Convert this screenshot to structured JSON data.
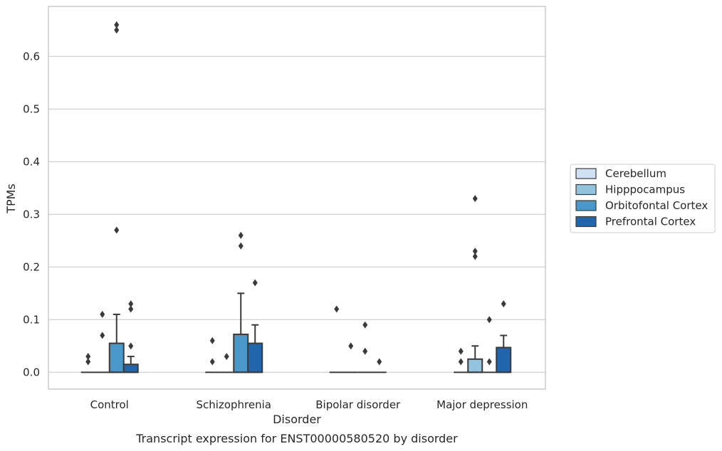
{
  "chart_data": {
    "type": "box",
    "caption": "Transcript expression for ENST00000580520 by disorder",
    "xlabel": "Disorder",
    "ylabel": "TPMs",
    "ylim": [
      -0.032,
      0.695
    ],
    "yticks": [
      "0.0",
      "0.1",
      "0.2",
      "0.3",
      "0.4",
      "0.5",
      "0.6"
    ],
    "ytick_values": [
      0.0,
      0.1,
      0.2,
      0.3,
      0.4,
      0.5,
      0.6
    ],
    "grid": "horizontal",
    "legend_position": "right",
    "categories": [
      "Control",
      "Schizophrenia",
      "Bipolar disorder",
      "Major depression"
    ],
    "series": [
      {
        "name": "Cerebellum",
        "color": "#cfe1f2",
        "boxes": [
          {
            "q1": 0,
            "median": 0,
            "q3": 0,
            "whisker_low": 0,
            "whisker_high": 0,
            "outliers": [
              0.02,
              0.03
            ]
          },
          {
            "q1": 0,
            "median": 0,
            "q3": 0,
            "whisker_low": 0,
            "whisker_high": 0,
            "outliers": [
              0.02,
              0.06
            ]
          },
          {
            "q1": 0,
            "median": 0,
            "q3": 0,
            "whisker_low": 0,
            "whisker_high": 0,
            "outliers": [
              0.12
            ]
          },
          {
            "q1": 0,
            "median": 0,
            "q3": 0,
            "whisker_low": 0,
            "whisker_high": 0,
            "outliers": [
              0.02,
              0.04
            ]
          }
        ]
      },
      {
        "name": "Hipppocampus",
        "color": "#93c4de",
        "boxes": [
          {
            "q1": 0,
            "median": 0,
            "q3": 0,
            "whisker_low": 0,
            "whisker_high": 0,
            "outliers": [
              0.07,
              0.11
            ]
          },
          {
            "q1": 0,
            "median": 0,
            "q3": 0,
            "whisker_low": 0,
            "whisker_high": 0,
            "outliers": [
              0.03
            ]
          },
          {
            "q1": 0,
            "median": 0,
            "q3": 0,
            "whisker_low": 0,
            "whisker_high": 0,
            "outliers": [
              0.05
            ]
          },
          {
            "q1": 0,
            "median": 0,
            "q3": 0.025,
            "whisker_low": 0,
            "whisker_high": 0.05,
            "outliers": [
              0.22,
              0.23,
              0.33
            ]
          }
        ]
      },
      {
        "name": "Orbitofontal Cortex",
        "color": "#4a98c9",
        "boxes": [
          {
            "q1": 0,
            "median": 0,
            "q3": 0.055,
            "whisker_low": 0,
            "whisker_high": 0.11,
            "outliers": [
              0.27,
              0.65,
              0.66
            ]
          },
          {
            "q1": 0,
            "median": 0,
            "q3": 0.072,
            "whisker_low": 0,
            "whisker_high": 0.15,
            "outliers": [
              0.24,
              0.26
            ]
          },
          {
            "q1": 0,
            "median": 0,
            "q3": 0,
            "whisker_low": 0,
            "whisker_high": 0,
            "outliers": [
              0.04,
              0.09
            ]
          },
          {
            "q1": 0,
            "median": 0,
            "q3": 0,
            "whisker_low": 0,
            "whisker_high": 0,
            "outliers": [
              0.02,
              0.1
            ]
          }
        ]
      },
      {
        "name": "Prefrontal Cortex",
        "color": "#2166ac",
        "boxes": [
          {
            "q1": 0,
            "median": 0,
            "q3": 0.015,
            "whisker_low": 0,
            "whisker_high": 0.03,
            "outliers": [
              0.05,
              0.12,
              0.13
            ]
          },
          {
            "q1": 0,
            "median": 0,
            "q3": 0.055,
            "whisker_low": 0,
            "whisker_high": 0.09,
            "outliers": [
              0.17
            ]
          },
          {
            "q1": 0,
            "median": 0,
            "q3": 0,
            "whisker_low": 0,
            "whisker_high": 0,
            "outliers": [
              0.02
            ]
          },
          {
            "q1": 0,
            "median": 0,
            "q3": 0.047,
            "whisker_low": 0,
            "whisker_high": 0.07,
            "outliers": [
              0.13
            ]
          }
        ]
      }
    ]
  }
}
